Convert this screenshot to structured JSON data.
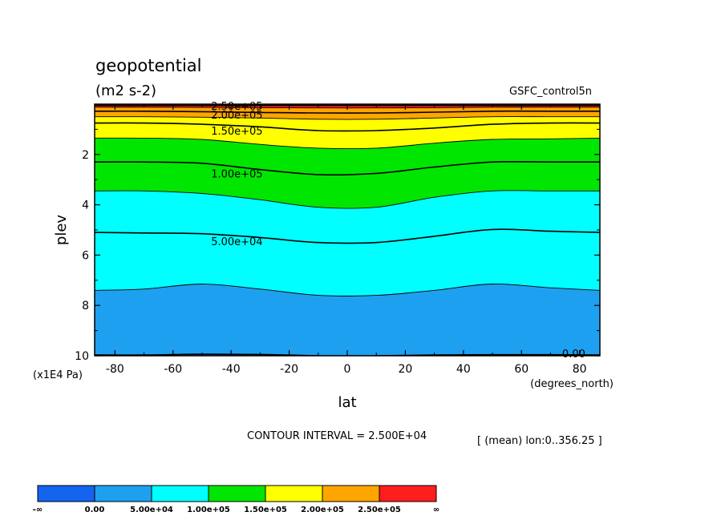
{
  "title": "geopotential",
  "units": "(m2 s-2)",
  "dataset": "GSFC_control5n",
  "contour_interval": "CONTOUR INTERVAL = 2.500E+04",
  "mean_note": "[ (mean) lon:0..356.25 ]",
  "chart_data": {
    "type": "contour",
    "title": "geopotential",
    "subtitle": "(m2 s-2)",
    "xlabel": "lat",
    "x_units": "(degrees_north)",
    "ylabel": "plev",
    "y_units": "(x1E4 Pa)",
    "xlim": [
      -87,
      87
    ],
    "ylim": [
      10,
      0
    ],
    "x_ticks": [
      "-80",
      "-60",
      "-40",
      "-20",
      "0",
      "20",
      "40",
      "60",
      "80"
    ],
    "y_ticks": [
      "2",
      "4",
      "6",
      "8",
      "10"
    ],
    "y_tick_values": [
      2,
      4,
      6,
      8,
      10
    ],
    "x_tick_values": [
      -80,
      -60,
      -40,
      -20,
      0,
      20,
      40,
      60,
      80
    ],
    "contour_interval": 25000,
    "fill_colors": [
      "#1464f0",
      "#1ea0f0",
      "#00ffff",
      "#00e600",
      "#ffff00",
      "#ffa500",
      "#ff1e1e"
    ],
    "lat_samples": [
      -87,
      -70,
      -50,
      -30,
      -10,
      10,
      30,
      50,
      70,
      87
    ],
    "contour_lines": [
      {
        "level": 0,
        "label": "0.00",
        "plev": [
          9.97,
          9.97,
          9.94,
          9.95,
          10.0,
          10.0,
          9.97,
          9.96,
          9.96,
          9.97
        ]
      },
      {
        "level": 25000,
        "label": "",
        "plev": [
          7.4,
          7.35,
          7.15,
          7.35,
          7.6,
          7.6,
          7.4,
          7.15,
          7.3,
          7.4
        ]
      },
      {
        "level": 50000,
        "label": "5.00e+04",
        "plev": [
          5.1,
          5.12,
          5.15,
          5.3,
          5.5,
          5.5,
          5.25,
          4.98,
          5.05,
          5.1
        ]
      },
      {
        "level": 75000,
        "label": "",
        "plev": [
          3.45,
          3.45,
          3.55,
          3.8,
          4.1,
          4.1,
          3.7,
          3.45,
          3.45,
          3.45
        ]
      },
      {
        "level": 100000,
        "label": "1.00e+05",
        "plev": [
          2.3,
          2.3,
          2.35,
          2.6,
          2.8,
          2.75,
          2.5,
          2.3,
          2.3,
          2.3
        ]
      },
      {
        "level": 125000,
        "label": "",
        "plev": [
          1.35,
          1.35,
          1.4,
          1.6,
          1.75,
          1.75,
          1.55,
          1.4,
          1.38,
          1.35
        ]
      },
      {
        "level": 150000,
        "label": "1.50e+05",
        "plev": [
          0.75,
          0.75,
          0.8,
          0.9,
          1.05,
          1.05,
          0.95,
          0.8,
          0.75,
          0.75
        ]
      },
      {
        "level": 175000,
        "label": "",
        "plev": [
          0.5,
          0.5,
          0.52,
          0.55,
          0.6,
          0.6,
          0.55,
          0.5,
          0.5,
          0.5
        ]
      },
      {
        "level": 200000,
        "label": "2.00e+05",
        "plev": [
          0.28,
          0.28,
          0.3,
          0.33,
          0.35,
          0.35,
          0.32,
          0.28,
          0.28,
          0.28
        ]
      },
      {
        "level": 225000,
        "label": "",
        "plev": [
          0.12,
          0.12,
          0.13,
          0.14,
          0.15,
          0.15,
          0.14,
          0.12,
          0.12,
          0.12
        ]
      },
      {
        "level": 250000,
        "label": "2.50e+05",
        "plev": [
          0.05,
          0.05,
          0.05,
          0.05,
          0.05,
          0.05,
          0.05,
          0.05,
          0.05,
          0.05
        ]
      }
    ],
    "colorbar": {
      "labels": [
        "-∞",
        "0.00",
        "5.00e+04",
        "1.00e+05",
        "1.50e+05",
        "2.00e+05",
        "2.50e+05",
        "∞"
      ],
      "colors": [
        "#1464f0",
        "#1ea0f0",
        "#00ffff",
        "#00e600",
        "#ffff00",
        "#ffa500",
        "#ff1e1e"
      ]
    }
  }
}
